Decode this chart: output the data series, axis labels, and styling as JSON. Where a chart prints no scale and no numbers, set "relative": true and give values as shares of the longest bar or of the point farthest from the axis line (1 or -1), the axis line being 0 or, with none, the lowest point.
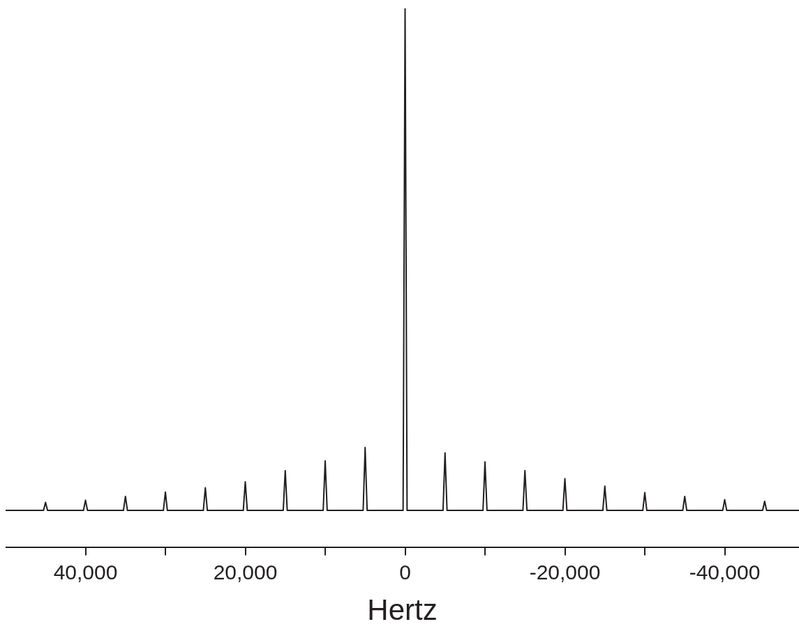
{
  "chart_data": {
    "type": "line",
    "xlabel": "Hertz",
    "relative": true,
    "xlim": [
      50000,
      -49300
    ],
    "xticks": [
      {
        "value": 40000,
        "label": "40,000"
      },
      {
        "value": 30000,
        "label": null
      },
      {
        "value": 20000,
        "label": "20,000"
      },
      {
        "value": 10000,
        "label": null
      },
      0,
      {
        "value": -10000,
        "label": null
      },
      {
        "value": -20000,
        "label": "-20,000"
      },
      {
        "value": -30000,
        "label": null
      },
      {
        "value": -40000,
        "label": "-40,000"
      }
    ],
    "series": [
      {
        "color": "#231f20",
        "x": [
          50000,
          45250,
          45000,
          44750,
          40250,
          40000,
          39750,
          35250,
          35000,
          34750,
          30250,
          30000,
          29750,
          25250,
          25000,
          24750,
          20250,
          20000,
          19750,
          15250,
          15000,
          14750,
          10250,
          10000,
          9750,
          5250,
          5000,
          4750,
          250,
          0,
          -250,
          -4750,
          -5000,
          -5250,
          -9750,
          -10000,
          -10250,
          -14750,
          -15000,
          -15250,
          -19750,
          -20000,
          -20250,
          -24750,
          -25000,
          -25250,
          -29750,
          -30000,
          -30250,
          -34750,
          -35000,
          -35250,
          -39750,
          -40000,
          -40250,
          -44750,
          -45000,
          -45250,
          -49300
        ],
        "values": [
          0.068,
          0.068,
          0.083,
          0.068,
          0.068,
          0.087,
          0.068,
          0.068,
          0.094,
          0.068,
          0.068,
          0.102,
          0.068,
          0.068,
          0.11,
          0.068,
          0.068,
          0.121,
          0.068,
          0.068,
          0.142,
          0.068,
          0.068,
          0.16,
          0.068,
          0.068,
          0.185,
          0.068,
          0.068,
          1,
          0.068,
          0.068,
          0.175,
          0.068,
          0.068,
          0.158,
          0.068,
          0.068,
          0.142,
          0.068,
          0.068,
          0.127,
          0.068,
          0.068,
          0.113,
          0.068,
          0.068,
          0.101,
          0.068,
          0.068,
          0.094,
          0.068,
          0.068,
          0.088,
          0.068,
          0.068,
          0.085,
          0.068,
          0.068
        ]
      }
    ]
  }
}
